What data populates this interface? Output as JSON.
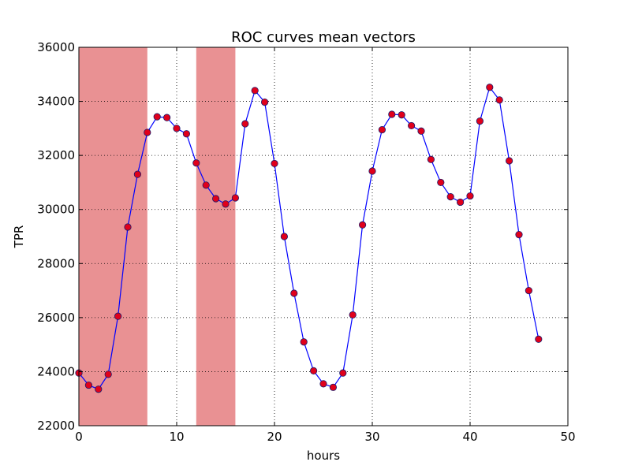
{
  "chart_data": {
    "type": "line",
    "title": "ROC curves mean vectors",
    "xlabel": "hours",
    "ylabel": "TPR",
    "xlim": [
      0,
      50
    ],
    "ylim": [
      22000,
      36000
    ],
    "xticks": [
      0,
      10,
      20,
      30,
      40,
      50
    ],
    "yticks": [
      22000,
      24000,
      26000,
      28000,
      30000,
      32000,
      34000,
      36000
    ],
    "xtick_labels": [
      "0",
      "10",
      "20",
      "30",
      "40",
      "50"
    ],
    "ytick_labels": [
      "22000",
      "24000",
      "26000",
      "28000",
      "30000",
      "32000",
      "34000",
      "36000"
    ],
    "grid": true,
    "shaded_spans": [
      {
        "x0": 0,
        "x1": 7,
        "color": "#e99193"
      },
      {
        "x0": 12,
        "x1": 16,
        "color": "#e99193"
      }
    ],
    "series": [
      {
        "line_color": "#0000ff",
        "marker_color": "#e0001b",
        "x": [
          0,
          1,
          2,
          3,
          4,
          5,
          6,
          7,
          8,
          9,
          10,
          11,
          12,
          13,
          14,
          15,
          16,
          17,
          18,
          19,
          20,
          21,
          22,
          23,
          24,
          25,
          26,
          27,
          28,
          29,
          30,
          31,
          32,
          33,
          34,
          35,
          36,
          37,
          38,
          39,
          40,
          41,
          42,
          43,
          44,
          45,
          46,
          47
        ],
        "values": [
          23950,
          23500,
          23350,
          23900,
          26050,
          29350,
          31300,
          32850,
          33430,
          33400,
          33000,
          32800,
          31720,
          30900,
          30400,
          30200,
          30430,
          33170,
          34400,
          33970,
          31700,
          29000,
          26900,
          25100,
          24030,
          23550,
          23420,
          23950,
          26100,
          29430,
          31420,
          32950,
          33520,
          33500,
          33100,
          32900,
          31850,
          31000,
          30470,
          30270,
          30500,
          33270,
          34520,
          34050,
          31800,
          29070,
          27000,
          25200
        ]
      }
    ]
  }
}
